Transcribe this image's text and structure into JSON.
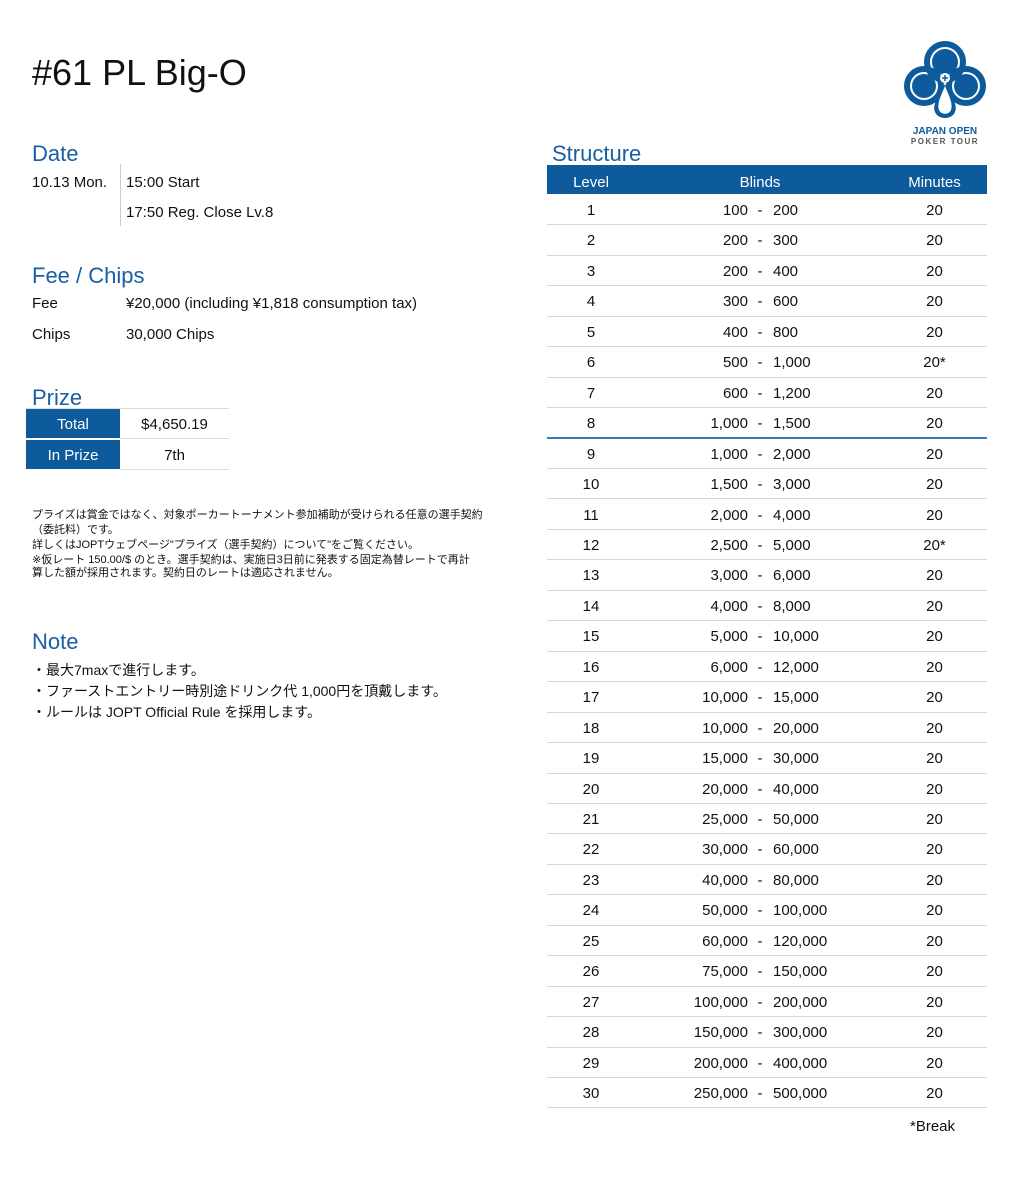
{
  "title": "#61 PL Big-O",
  "logo": {
    "line1": "JAPAN OPEN",
    "line2": "POKER TOUR",
    "color": "#0d5a9c"
  },
  "date": {
    "heading": "Date",
    "day": "10.13 Mon.",
    "start": "15:00 Start",
    "reg_close": "17:50 Reg. Close Lv.8"
  },
  "fee": {
    "heading": "Fee / Chips",
    "fee_label": "Fee",
    "fee_value": "¥20,000 (including ¥1,818 consumption tax)",
    "chips_label": "Chips",
    "chips_value": "30,000 Chips"
  },
  "prize": {
    "heading": "Prize",
    "total_label": "Total",
    "total_value": "$4,650.19",
    "inprize_label": "In Prize",
    "inprize_value": "7th"
  },
  "disclaimer": [
    "プライズは賞金ではなく、対象ポーカートーナメント参加補助が受けられる任意の選手契約",
    "（委託料）です。",
    "詳しくはJOPTウェブページ\"プライズ（選手契約）について\"をご覧ください。",
    "※仮レート 150.00/$ のとき。選手契約は、実施日3日前に発表する固定為替レートで再計",
    "算した額が採用されます。契約日のレートは適応されません。"
  ],
  "note": {
    "heading": "Note",
    "items": [
      "・最大7maxで進行します。",
      "・ファーストエントリー時別途ドリンク代  1,000円を頂戴します。",
      "・ルールは JOPT Official Rule を採用します。"
    ]
  },
  "structure": {
    "heading": "Structure",
    "columns": [
      "Level",
      "Blinds",
      "Minutes"
    ],
    "reg_close_level": 8,
    "rows": [
      [
        "1",
        "100",
        "200",
        "20"
      ],
      [
        "2",
        "200",
        "300",
        "20"
      ],
      [
        "3",
        "200",
        "400",
        "20"
      ],
      [
        "4",
        "300",
        "600",
        "20"
      ],
      [
        "5",
        "400",
        "800",
        "20"
      ],
      [
        "6",
        "500",
        "1,000",
        "20*"
      ],
      [
        "7",
        "600",
        "1,200",
        "20"
      ],
      [
        "8",
        "1,000",
        "1,500",
        "20"
      ],
      [
        "9",
        "1,000",
        "2,000",
        "20"
      ],
      [
        "10",
        "1,500",
        "3,000",
        "20"
      ],
      [
        "11",
        "2,000",
        "4,000",
        "20"
      ],
      [
        "12",
        "2,500",
        "5,000",
        "20*"
      ],
      [
        "13",
        "3,000",
        "6,000",
        "20"
      ],
      [
        "14",
        "4,000",
        "8,000",
        "20"
      ],
      [
        "15",
        "5,000",
        "10,000",
        "20"
      ],
      [
        "16",
        "6,000",
        "12,000",
        "20"
      ],
      [
        "17",
        "10,000",
        "15,000",
        "20"
      ],
      [
        "18",
        "10,000",
        "20,000",
        "20"
      ],
      [
        "19",
        "15,000",
        "30,000",
        "20"
      ],
      [
        "20",
        "20,000",
        "40,000",
        "20"
      ],
      [
        "21",
        "25,000",
        "50,000",
        "20"
      ],
      [
        "22",
        "30,000",
        "60,000",
        "20"
      ],
      [
        "23",
        "40,000",
        "80,000",
        "20"
      ],
      [
        "24",
        "50,000",
        "100,000",
        "20"
      ],
      [
        "25",
        "60,000",
        "120,000",
        "20"
      ],
      [
        "26",
        "75,000",
        "150,000",
        "20"
      ],
      [
        "27",
        "100,000",
        "200,000",
        "20"
      ],
      [
        "28",
        "150,000",
        "300,000",
        "20"
      ],
      [
        "29",
        "200,000",
        "400,000",
        "20"
      ],
      [
        "30",
        "250,000",
        "500,000",
        "20"
      ]
    ],
    "separator": "-",
    "footnote": "*Break"
  }
}
